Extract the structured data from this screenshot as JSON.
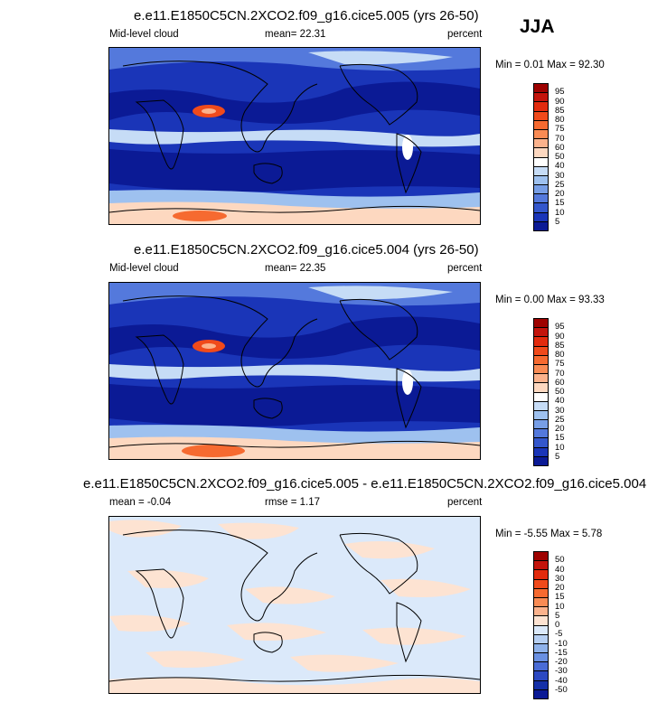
{
  "season": "JJA",
  "panels": [
    {
      "title": "e.e11.E1850C5CN.2XCO2.f09_g16.cice5.005 (yrs 26-50)",
      "left_label": "Mid-level cloud",
      "center_label": "mean=  22.31",
      "right_label": "percent",
      "minmax": "Min =  0.01 Max =  92.30",
      "colorbar_labels": [
        "95",
        "90",
        "85",
        "80",
        "75",
        "70",
        "60",
        "50",
        "40",
        "30",
        "25",
        "20",
        "15",
        "10",
        "5"
      ],
      "colorbar_colors": [
        "#9e0200",
        "#c3140c",
        "#e22b0e",
        "#f04a1b",
        "#f66a30",
        "#f98b54",
        "#fbb28c",
        "#fdd8c0",
        "#ffffff",
        "#c6dcf6",
        "#9ec1ef",
        "#779ee6",
        "#5479dc",
        "#3457cc",
        "#1a35b8",
        "#0b1a95"
      ]
    },
    {
      "title": "e.e11.E1850C5CN.2XCO2.f09_g16.cice5.004 (yrs 26-50)",
      "left_label": "Mid-level cloud",
      "center_label": "mean=  22.35",
      "right_label": "percent",
      "minmax": "Min =  0.00 Max =  93.33",
      "colorbar_labels": [
        "95",
        "90",
        "85",
        "80",
        "75",
        "70",
        "60",
        "50",
        "40",
        "30",
        "25",
        "20",
        "15",
        "10",
        "5"
      ],
      "colorbar_colors": [
        "#9e0200",
        "#c3140c",
        "#e22b0e",
        "#f04a1b",
        "#f66a30",
        "#f98b54",
        "#fbb28c",
        "#fdd8c0",
        "#ffffff",
        "#c6dcf6",
        "#9ec1ef",
        "#779ee6",
        "#5479dc",
        "#3457cc",
        "#1a35b8",
        "#0b1a95"
      ]
    },
    {
      "title": "e.e11.E1850C5CN.2XCO2.f09_g16.cice5.005 - e.e11.E1850C5CN.2XCO2.f09_g16.cice5.004",
      "left_label": "mean =  -0.04",
      "center_label": "rmse =   1.17",
      "right_label": "percent",
      "minmax": "Min =  -5.55 Max =   5.78",
      "colorbar_labels": [
        "50",
        "40",
        "30",
        "20",
        "15",
        "10",
        "5",
        "0",
        "-5",
        "-10",
        "-15",
        "-20",
        "-30",
        "-40",
        "-50"
      ],
      "colorbar_colors": [
        "#9e0200",
        "#c3140c",
        "#e22b0e",
        "#f04a1b",
        "#f66a30",
        "#f98b54",
        "#fbb28c",
        "#fde3d2",
        "#dbe9fa",
        "#b6cff2",
        "#8fb2ea",
        "#6a90e2",
        "#4a6cd6",
        "#2c49c2",
        "#1530a8",
        "#0b1a95"
      ]
    }
  ]
}
